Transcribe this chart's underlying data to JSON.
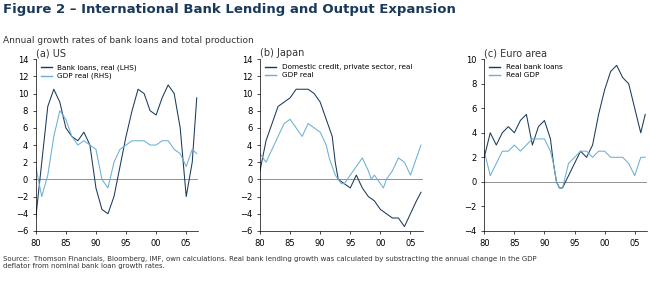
{
  "title": "Figure 2 – International Bank Lending and Output Expansion",
  "subtitle": "Annual growth rates of bank loans and total production",
  "source_text": "Source:  Thomson Financials, Bloomberg, IMF, own calculations. Real bank lending growth was calculated by substracting the annual change in the GDP\ndeflator from nominal bank loan growth rates.",
  "dark_blue": "#1a3a5c",
  "light_blue": "#6ab0d4",
  "panel_a": {
    "ylim": [
      -6,
      14
    ],
    "yticks": [
      -6,
      -4,
      -2,
      0,
      2,
      4,
      6,
      8,
      10,
      12,
      14
    ],
    "xticks": [
      1980,
      1985,
      1990,
      1995,
      2000,
      2005
    ],
    "xticklabels": [
      "80",
      "85",
      "90",
      "95",
      "00",
      "05"
    ],
    "legend": [
      "Bank loans, real (LHS)",
      "GDP real (RHS)"
    ],
    "xlim": [
      1980,
      2007
    ]
  },
  "panel_b": {
    "ylim": [
      -6,
      14
    ],
    "yticks": [
      -6,
      -4,
      -2,
      0,
      2,
      4,
      6,
      8,
      10,
      12,
      14
    ],
    "xticks": [
      1980,
      1985,
      1990,
      1995,
      2000,
      2005
    ],
    "xticklabels": [
      "80",
      "85",
      "90",
      "95",
      "00",
      "05"
    ],
    "legend": [
      "Domestic credit, private sector, real",
      "GDP real"
    ],
    "xlim": [
      1980,
      2007
    ]
  },
  "panel_c": {
    "ylim": [
      -4,
      10
    ],
    "yticks": [
      -4,
      -2,
      0,
      2,
      4,
      6,
      8,
      10
    ],
    "xticks": [
      1980,
      1985,
      1990,
      1995,
      2000,
      2005
    ],
    "xticklabels": [
      "80",
      "85",
      "90",
      "95",
      "00",
      "05"
    ],
    "legend": [
      "Real bank loans",
      "Real GDP"
    ],
    "xlim": [
      1980,
      2007
    ]
  }
}
